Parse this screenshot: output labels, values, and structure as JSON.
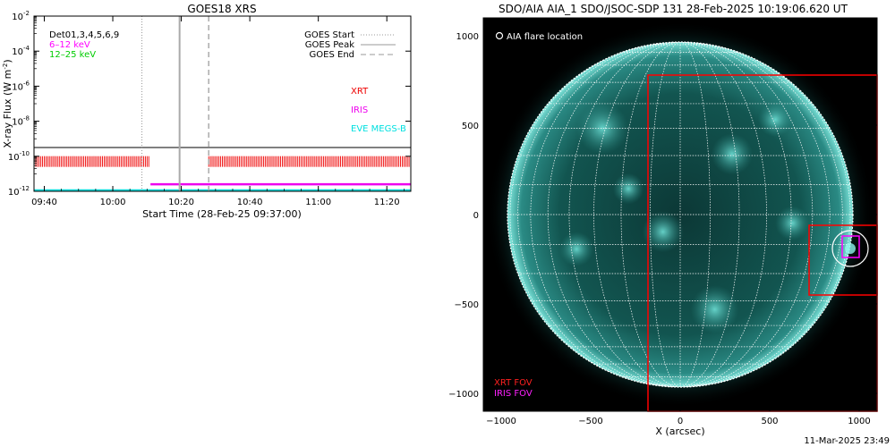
{
  "chart_data": [
    {
      "type": "line",
      "title": "GOES18 XRS",
      "xlabel": "Start Time (28-Feb-25 09:37:00)",
      "ylabel": "X-ray Flux (W m",
      "ylabel_sup": "-2",
      "ylabel_close": ")",
      "ylim_log10": [
        -12,
        -2
      ],
      "yticks": [
        {
          "base": "10",
          "exp": "-2",
          "log": -2
        },
        {
          "base": "10",
          "exp": "-4",
          "log": -4
        },
        {
          "base": "10",
          "exp": "-6",
          "log": -6
        },
        {
          "base": "10",
          "exp": "-8",
          "log": -8
        },
        {
          "base": "10",
          "exp": "-10",
          "log": -10
        },
        {
          "base": "10",
          "exp": "-12",
          "log": -12
        }
      ],
      "xlim_minutes": [
        0,
        110
      ],
      "xticks": [
        {
          "label": "09:40",
          "min": 3
        },
        {
          "label": "10:00",
          "min": 23
        },
        {
          "label": "10:20",
          "min": 43
        },
        {
          "label": "10:40",
          "min": 63
        },
        {
          "label": "11:00",
          "min": 83
        },
        {
          "label": "11:20",
          "min": 103
        }
      ],
      "legend_left": [
        {
          "label": "Det01,3,4,5,6,9",
          "color": "#000000"
        },
        {
          "label": "6–12 keV",
          "color": "#ff00ff"
        },
        {
          "label": "12–25 keV",
          "color": "#00cc00"
        }
      ],
      "legend_right": [
        {
          "label": "GOES Start",
          "style": "dotted"
        },
        {
          "label": "GOES Peak",
          "style": "solid"
        },
        {
          "label": "GOES End",
          "style": "dashed"
        }
      ],
      "goes_start_min": 31.5,
      "goes_peak_min": 42.5,
      "goes_end_min": 51,
      "goes_level_log10": -9.5,
      "goes_low_log10": -11.95,
      "xrt_min_ranges": [
        [
          0,
          33.5
        ],
        [
          51,
          110
        ]
      ],
      "xrt_log10": -10.3,
      "iris_min_range": [
        34,
        110
      ],
      "iris_log10": -11.6,
      "instrument_labels": [
        {
          "label": "XRT",
          "color": "#ee0000"
        },
        {
          "label": "IRIS",
          "color": "#ee00ee"
        },
        {
          "label": "EVE MEGS-B",
          "color": "#00e0e0"
        }
      ]
    },
    {
      "type": "image",
      "title": "SDO/AIA AIA_1 SDO/JSOC-SDP 131 28-Feb-2025 10:19:06.620 UT",
      "xlabel": "X (arcsec)",
      "xlim": [
        -1100,
        1100
      ],
      "ylim": [
        -1100,
        1100
      ],
      "xticks": [
        -1000,
        -500,
        0,
        500,
        1000
      ],
      "yticks": [
        1000,
        500,
        0,
        -500,
        -1000
      ],
      "solar_radius_arcsec": 965,
      "legend_top": "AIA flare location",
      "flare_location": [
        950,
        -190
      ],
      "xrt_fov": {
        "x": [
          -180,
          1110
        ],
        "y": [
          -1110,
          780
        ],
        "label": "XRT FOV",
        "color": "#ff0000"
      },
      "xrt_fov_small": {
        "x": [
          720,
          1110
        ],
        "y": [
          -450,
          -60
        ]
      },
      "iris_fov": {
        "x": [
          905,
          1000
        ],
        "y": [
          -240,
          -120
        ],
        "label": "IRIS FOV",
        "color": "#ff00ff"
      }
    }
  ],
  "footer": {
    "timestamp": "11-Mar-2025 23:49"
  },
  "colors": {
    "axis": "#000000",
    "aia_cyan": "#40c8c0",
    "grid": "#ffffff"
  }
}
